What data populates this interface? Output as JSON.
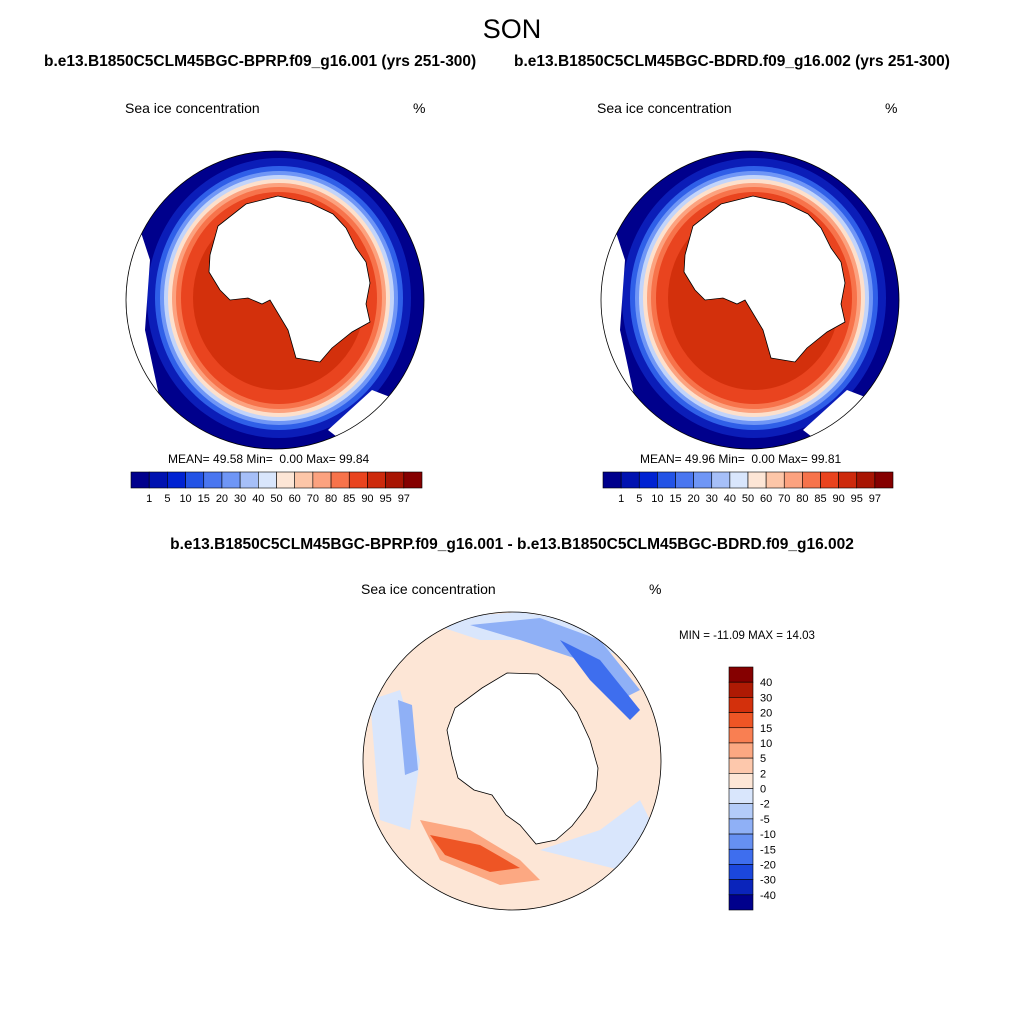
{
  "season": "SON",
  "panels": [
    {
      "title": "b.e13.B1850C5CLM45BGC-BPRP.f09_g16.001 (yrs 251-300)",
      "variable": "Sea ice concentration",
      "units": "%",
      "stats": {
        "mean_label": "MEAN=",
        "mean": "49.58",
        "min_label": "Min=",
        "min": "0.00",
        "max_label": "Max=",
        "max": "99.84"
      }
    },
    {
      "title": "b.e13.B1850C5CLM45BGC-BDRD.f09_g16.002 (yrs 251-300)",
      "variable": "Sea ice concentration",
      "units": "%",
      "stats": {
        "mean_label": "MEAN=",
        "mean": "49.96",
        "min_label": "Min=",
        "min": "0.00",
        "max_label": "Max=",
        "max": "99.81"
      }
    }
  ],
  "abs_colorbar": {
    "labels": [
      "1",
      "5",
      "10",
      "15",
      "20",
      "30",
      "40",
      "50",
      "60",
      "70",
      "80",
      "85",
      "90",
      "95",
      "97"
    ],
    "colors": [
      "#00008c",
      "#0012b0",
      "#0022d2",
      "#2353e6",
      "#4a76f0",
      "#6f96f6",
      "#a6bff8",
      "#d9e6fc",
      "#fde6d6",
      "#fdc6a8",
      "#fca27f",
      "#f7734b",
      "#e9441f",
      "#cd2a0c",
      "#a81503",
      "#850000"
    ]
  },
  "diff": {
    "title": "b.e13.B1850C5CLM45BGC-BPRP.f09_g16.001 - b.e13.B1850C5CLM45BGC-BDRD.f09_g16.002",
    "variable": "Sea ice concentration",
    "units": "%",
    "minmax": "MIN = -11.09 MAX =  14.03"
  },
  "diff_colorbar": {
    "labels": [
      "40",
      "30",
      "20",
      "15",
      "10",
      "5",
      "2",
      "0",
      "-2",
      "-5",
      "-10",
      "-15",
      "-20",
      "-30",
      "-40"
    ],
    "colors": [
      "#850000",
      "#ae1a04",
      "#d3300c",
      "#ee5525",
      "#f97f52",
      "#fca882",
      "#fdc8ac",
      "#fde6d6",
      "#d9e6fc",
      "#b4ccf9",
      "#8fb0f6",
      "#6690f2",
      "#3e6eee",
      "#1b47dd",
      "#0a24bb",
      "#00008c"
    ]
  }
}
